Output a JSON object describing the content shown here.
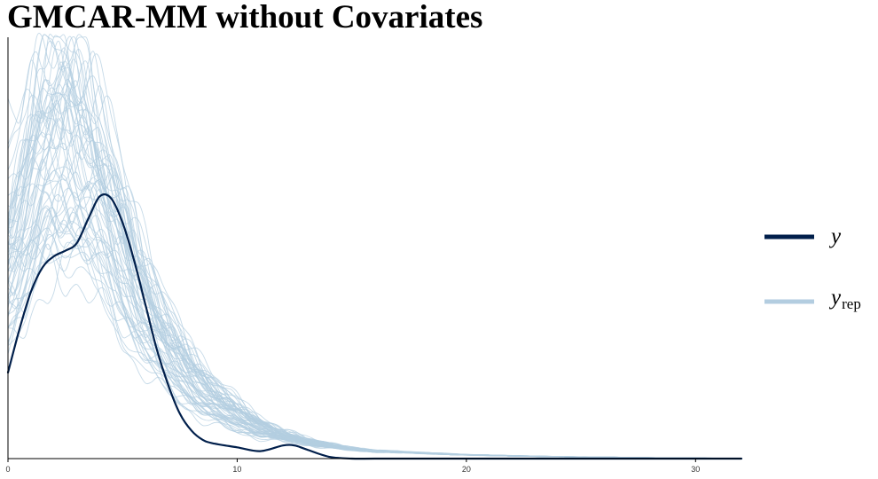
{
  "chart_data": {
    "type": "line",
    "title": "GMCAR-MM without Covariates",
    "xlabel": "",
    "ylabel": "",
    "xlim": [
      0,
      32
    ],
    "ylim": [
      0,
      0.225
    ],
    "xticks": [
      0,
      10,
      20,
      30
    ],
    "xtick_labels": [
      "0",
      "10",
      "20",
      "30"
    ],
    "grid": false,
    "legend_position": "right",
    "colors": {
      "y": "#011f4b",
      "yrep": "#b3cde0"
    },
    "yrep_draws": 60,
    "series": [
      {
        "name": "y",
        "legend_main": "y",
        "legend_sub": "",
        "x": [
          0,
          0.5,
          1,
          1.5,
          2,
          2.5,
          3,
          3.5,
          4,
          4.5,
          5,
          5.5,
          6,
          6.5,
          7,
          7.5,
          8,
          8.5,
          9,
          10,
          11,
          12,
          12.5,
          13,
          14,
          15,
          16,
          18,
          20,
          25,
          32
        ],
        "y": [
          0.046,
          0.069,
          0.089,
          0.102,
          0.108,
          0.111,
          0.115,
          0.128,
          0.14,
          0.139,
          0.126,
          0.106,
          0.082,
          0.058,
          0.039,
          0.024,
          0.015,
          0.01,
          0.008,
          0.006,
          0.004,
          0.007,
          0.007,
          0.005,
          0.001,
          0,
          0,
          0,
          0,
          0,
          0
        ]
      },
      {
        "name": "yrep",
        "legend_main": "y",
        "legend_sub": "rep",
        "x": [
          0,
          0.5,
          1,
          1.5,
          2,
          2.5,
          3,
          3.5,
          4,
          4.5,
          5,
          5.5,
          6,
          6.5,
          7,
          7.5,
          8,
          8.5,
          9,
          10,
          11,
          12,
          13,
          14,
          15,
          16,
          18,
          20,
          22,
          24,
          26,
          28,
          30,
          32
        ],
        "y": [
          0.092,
          0.115,
          0.136,
          0.15,
          0.158,
          0.16,
          0.157,
          0.148,
          0.135,
          0.12,
          0.105,
          0.09,
          0.077,
          0.066,
          0.056,
          0.048,
          0.041,
          0.035,
          0.03,
          0.022,
          0.016,
          0.012,
          0.009,
          0.007,
          0.005,
          0.004,
          0.003,
          0.002,
          0.0015,
          0.001,
          0.0008,
          0.0005,
          0.0003,
          0.0002
        ]
      }
    ]
  }
}
